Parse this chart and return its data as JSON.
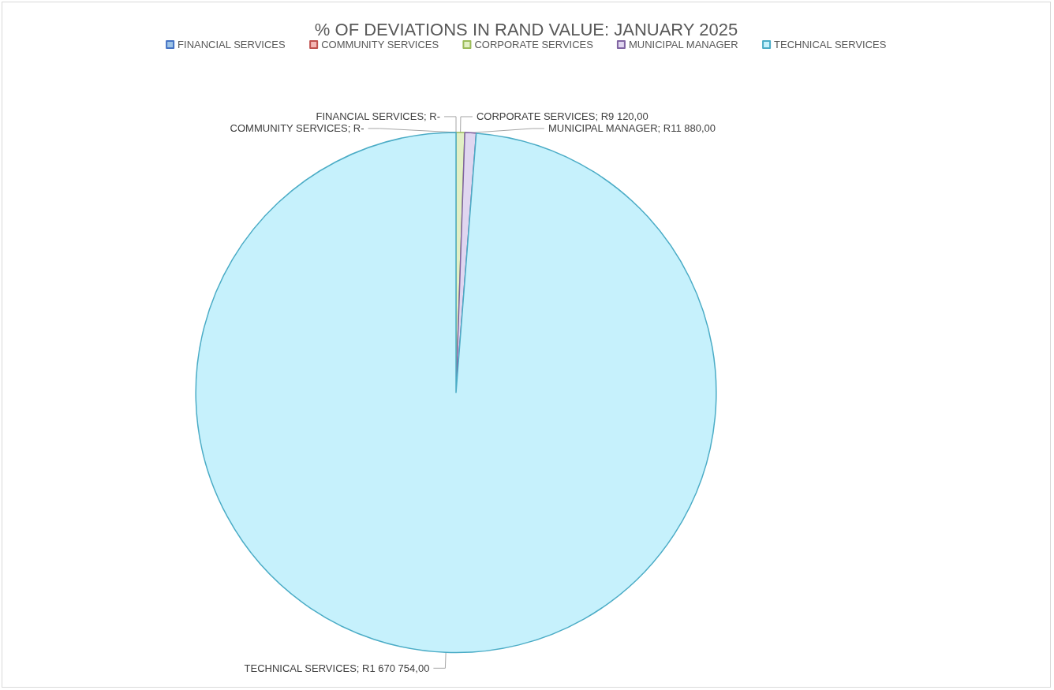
{
  "chart_data": {
    "type": "pie",
    "title": "% OF DEVIATIONS IN RAND VALUE: JANUARY 2025",
    "categories": [
      "FINANCIAL SERVICES",
      "COMMUNITY SERVICES",
      "CORPORATE SERVICES",
      "MUNICIPAL MANAGER",
      "TECHNICAL SERVICES"
    ],
    "values": [
      0,
      0,
      9120,
      11880,
      1670754
    ],
    "value_labels": [
      "FINANCIAL SERVICES; R-",
      "COMMUNITY SERVICES; R-",
      "CORPORATE SERVICES; R9 120,00",
      "MUNICIPAL MANAGER; R11 880,00",
      "TECHNICAL SERVICES; R1 670 754,00"
    ],
    "colors": [
      "#9dc3e6",
      "#f4b6b4",
      "#e2f0c4",
      "#e0d6f0",
      "#c6f1fc"
    ],
    "legend": "top"
  }
}
